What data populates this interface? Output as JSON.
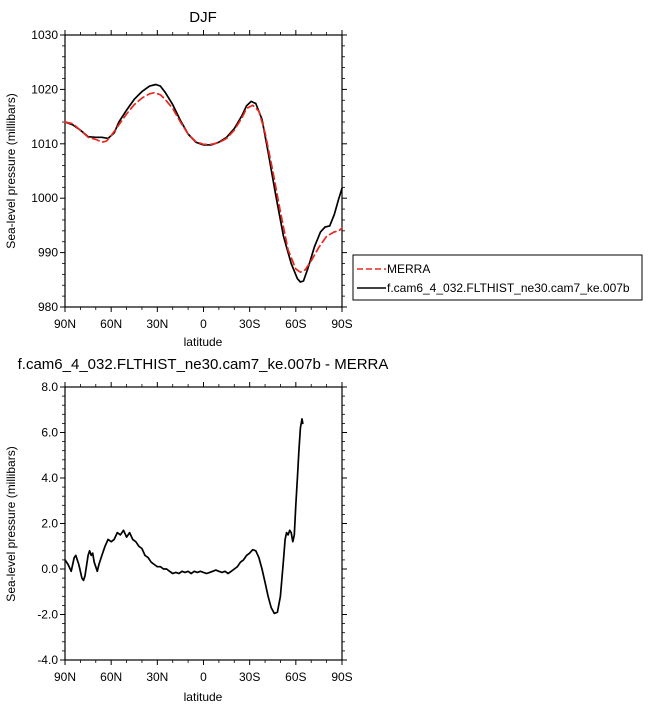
{
  "chart_data": [
    {
      "type": "line",
      "title": "DJF",
      "xlabel": "latitude",
      "ylabel": "Sea-level pressure (millibars)",
      "xlim": [
        90,
        -90
      ],
      "ylim": [
        980,
        1030
      ],
      "x_ticks": [
        90,
        60,
        30,
        0,
        -30,
        -60,
        -90
      ],
      "x_tick_labels": [
        "90N",
        "60N",
        "30N",
        "0",
        "30S",
        "60S",
        "90S"
      ],
      "y_ticks": [
        980,
        990,
        1000,
        1010,
        1020,
        1030
      ],
      "y_tick_labels": [
        "980",
        "990",
        "1000",
        "1010",
        "1020",
        "1030"
      ],
      "grid": false,
      "legend_position": "right, outside",
      "series": [
        {
          "name": "MERRA",
          "color": "#e8281e",
          "dash": "dashed",
          "points": [
            [
              90,
              1014.0
            ],
            [
              85,
              1013.7
            ],
            [
              80,
              1012.5
            ],
            [
              75,
              1011.2
            ],
            [
              70,
              1010.8
            ],
            [
              66,
              1010.3
            ],
            [
              63,
              1010.5
            ],
            [
              60,
              1011.5
            ],
            [
              55,
              1013.5
            ],
            [
              50,
              1015.5
            ],
            [
              45,
              1017.2
            ],
            [
              40,
              1018.4
            ],
            [
              35,
              1019.2
            ],
            [
              32,
              1019.4
            ],
            [
              28,
              1019.0
            ],
            [
              25,
              1018.2
            ],
            [
              20,
              1016.5
            ],
            [
              15,
              1014.0
            ],
            [
              10,
              1011.8
            ],
            [
              5,
              1010.4
            ],
            [
              0,
              1009.9
            ],
            [
              -5,
              1009.9
            ],
            [
              -10,
              1010.2
            ],
            [
              -15,
              1011.0
            ],
            [
              -20,
              1012.5
            ],
            [
              -25,
              1014.8
            ],
            [
              -28,
              1016.5
            ],
            [
              -32,
              1017.1
            ],
            [
              -36,
              1016.0
            ],
            [
              -40,
              1012.0
            ],
            [
              -45,
              1005.0
            ],
            [
              -50,
              997.5
            ],
            [
              -55,
              990.5
            ],
            [
              -60,
              987.0
            ],
            [
              -63,
              986.4
            ],
            [
              -66,
              986.8
            ],
            [
              -70,
              988.5
            ],
            [
              -75,
              991.0
            ],
            [
              -80,
              993.0
            ],
            [
              -85,
              993.8
            ],
            [
              -88,
              994.0
            ],
            [
              -90,
              994.5
            ]
          ]
        },
        {
          "name": "f.cam6_4_032.FLTHIST_ne30.cam7_ke.007b",
          "color": "#000000",
          "dash": "solid",
          "points": [
            [
              90,
              1014.0
            ],
            [
              85,
              1013.5
            ],
            [
              80,
              1012.5
            ],
            [
              75,
              1011.3
            ],
            [
              70,
              1011.2
            ],
            [
              66,
              1011.2
            ],
            [
              62,
              1011.0
            ],
            [
              58,
              1012.0
            ],
            [
              55,
              1014.0
            ],
            [
              50,
              1016.2
            ],
            [
              45,
              1018.2
            ],
            [
              40,
              1019.6
            ],
            [
              35,
              1020.6
            ],
            [
              31,
              1020.9
            ],
            [
              28,
              1020.6
            ],
            [
              25,
              1019.5
            ],
            [
              20,
              1017.2
            ],
            [
              15,
              1014.3
            ],
            [
              10,
              1011.8
            ],
            [
              5,
              1010.3
            ],
            [
              0,
              1009.8
            ],
            [
              -5,
              1009.8
            ],
            [
              -10,
              1010.3
            ],
            [
              -15,
              1011.2
            ],
            [
              -20,
              1012.8
            ],
            [
              -25,
              1015.2
            ],
            [
              -28,
              1017.0
            ],
            [
              -31,
              1017.8
            ],
            [
              -34,
              1017.4
            ],
            [
              -38,
              1014.5
            ],
            [
              -42,
              1008.5
            ],
            [
              -47,
              1000.5
            ],
            [
              -52,
              993.0
            ],
            [
              -57,
              988.0
            ],
            [
              -61,
              985.2
            ],
            [
              -63,
              984.6
            ],
            [
              -65,
              984.8
            ],
            [
              -68,
              987.2
            ],
            [
              -72,
              991.0
            ],
            [
              -76,
              993.8
            ],
            [
              -79,
              994.7
            ],
            [
              -82,
              994.9
            ],
            [
              -85,
              997.0
            ],
            [
              -88,
              1000.0
            ],
            [
              -90,
              1001.8
            ]
          ]
        }
      ]
    },
    {
      "type": "line",
      "title": "f.cam6_4_032.FLTHIST_ne30.cam7_ke.007b - MERRA",
      "xlabel": "latitude",
      "ylabel": "Sea-level pressure (millibars)",
      "xlim": [
        90,
        -90
      ],
      "ylim": [
        -4.0,
        8.0
      ],
      "x_ticks": [
        90,
        60,
        30,
        0,
        -30,
        -60,
        -90
      ],
      "x_tick_labels": [
        "90N",
        "60N",
        "30N",
        "0",
        "30S",
        "60S",
        "90S"
      ],
      "y_ticks": [
        -4.0,
        -2.0,
        0.0,
        2.0,
        4.0,
        6.0,
        8.0
      ],
      "y_tick_labels": [
        "-4.0",
        "-2.0",
        "0.0",
        "2.0",
        "4.0",
        "6.0",
        "8.0"
      ],
      "grid": false,
      "series": [
        {
          "color": "#000000",
          "dash": "solid",
          "points": [
            [
              90,
              0.4
            ],
            [
              88,
              0.2
            ],
            [
              86,
              -0.1
            ],
            [
              84,
              0.5
            ],
            [
              83,
              0.6
            ],
            [
              81,
              0.2
            ],
            [
              79,
              -0.4
            ],
            [
              78,
              -0.5
            ],
            [
              77,
              -0.3
            ],
            [
              75,
              0.6
            ],
            [
              74,
              0.8
            ],
            [
              73,
              0.6
            ],
            [
              72,
              0.7
            ],
            [
              71,
              0.3
            ],
            [
              69,
              -0.1
            ],
            [
              68,
              0.2
            ],
            [
              66,
              0.6
            ],
            [
              64,
              1.0
            ],
            [
              62,
              1.3
            ],
            [
              60,
              1.2
            ],
            [
              58,
              1.3
            ],
            [
              56,
              1.6
            ],
            [
              54,
              1.5
            ],
            [
              52,
              1.7
            ],
            [
              50,
              1.4
            ],
            [
              48,
              1.6
            ],
            [
              46,
              1.3
            ],
            [
              44,
              1.2
            ],
            [
              42,
              1.0
            ],
            [
              40,
              0.9
            ],
            [
              38,
              0.6
            ],
            [
              36,
              0.5
            ],
            [
              34,
              0.3
            ],
            [
              32,
              0.2
            ],
            [
              30,
              0.1
            ],
            [
              28,
              0.1
            ],
            [
              26,
              0.0
            ],
            [
              24,
              0.0
            ],
            [
              22,
              -0.1
            ],
            [
              20,
              -0.2
            ],
            [
              18,
              -0.15
            ],
            [
              16,
              -0.2
            ],
            [
              14,
              -0.1
            ],
            [
              12,
              -0.15
            ],
            [
              10,
              -0.1
            ],
            [
              8,
              -0.2
            ],
            [
              6,
              -0.1
            ],
            [
              4,
              -0.15
            ],
            [
              2,
              -0.1
            ],
            [
              0,
              -0.15
            ],
            [
              -2,
              -0.2
            ],
            [
              -4,
              -0.15
            ],
            [
              -6,
              -0.1
            ],
            [
              -8,
              -0.05
            ],
            [
              -10,
              -0.1
            ],
            [
              -12,
              -0.15
            ],
            [
              -14,
              -0.1
            ],
            [
              -16,
              -0.2
            ],
            [
              -18,
              -0.1
            ],
            [
              -20,
              0.0
            ],
            [
              -22,
              0.1
            ],
            [
              -24,
              0.3
            ],
            [
              -26,
              0.4
            ],
            [
              -28,
              0.6
            ],
            [
              -30,
              0.7
            ],
            [
              -32,
              0.85
            ],
            [
              -34,
              0.8
            ],
            [
              -36,
              0.5
            ],
            [
              -38,
              0.0
            ],
            [
              -40,
              -0.6
            ],
            [
              -42,
              -1.2
            ],
            [
              -44,
              -1.7
            ],
            [
              -46,
              -1.95
            ],
            [
              -48,
              -1.9
            ],
            [
              -50,
              -1.2
            ],
            [
              -52,
              0.4
            ],
            [
              -53,
              1.3
            ],
            [
              -54,
              1.6
            ],
            [
              -55,
              1.5
            ],
            [
              -56,
              1.7
            ],
            [
              -57,
              1.6
            ],
            [
              -58,
              1.2
            ],
            [
              -59,
              1.5
            ],
            [
              -60,
              2.8
            ],
            [
              -61,
              4.0
            ],
            [
              -62,
              5.2
            ],
            [
              -63,
              6.2
            ],
            [
              -64,
              6.6
            ],
            [
              -64.5,
              6.4
            ]
          ]
        }
      ]
    }
  ]
}
